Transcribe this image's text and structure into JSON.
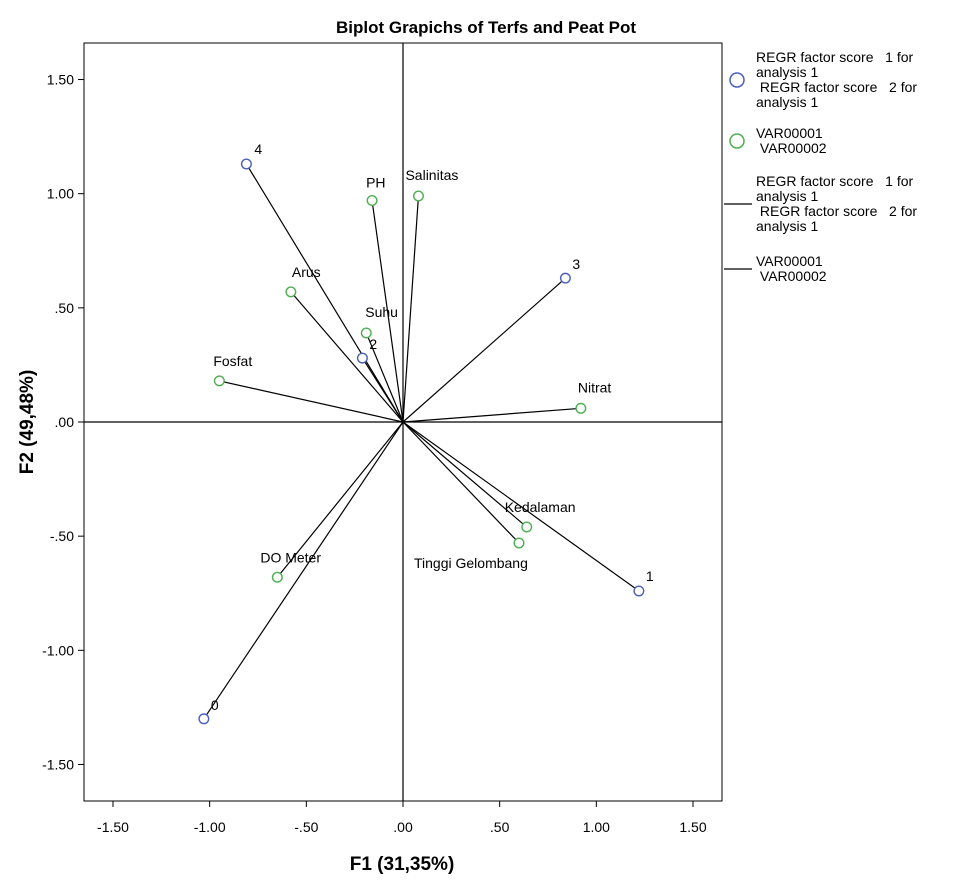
{
  "chart_data": {
    "type": "scatter",
    "title": "Biplot Grapichs of Terfs and Peat Pot",
    "xlabel": "F1 (31,35%)",
    "ylabel": "F2 (49,48%)",
    "xlim": [
      -1.65,
      1.65
    ],
    "ylim": [
      -1.66,
      1.66
    ],
    "x_ticks": [
      {
        "value": -1.5,
        "label": "-1.50"
      },
      {
        "value": -1.0,
        "label": "-1.00"
      },
      {
        "value": -0.5,
        "label": "-.50"
      },
      {
        "value": 0.0,
        "label": ".00"
      },
      {
        "value": 0.5,
        "label": ".50"
      },
      {
        "value": 1.0,
        "label": "1.00"
      },
      {
        "value": 1.5,
        "label": "1.50"
      }
    ],
    "y_ticks": [
      {
        "value": 1.5,
        "label": "1.50"
      },
      {
        "value": 1.0,
        "label": "1.00"
      },
      {
        "value": 0.5,
        "label": ".50"
      },
      {
        "value": 0.0,
        "label": ".00"
      },
      {
        "value": -0.5,
        "label": "-.50"
      },
      {
        "value": -1.0,
        "label": "-1.00"
      },
      {
        "value": -1.5,
        "label": "-1.50"
      }
    ],
    "grid": false,
    "reference_lines": {
      "x": 0,
      "y": 0
    },
    "legend_position": "right",
    "series": [
      {
        "name": "REGR factor score 1 for analysis 1 / REGR factor score 2 for analysis 1",
        "color": "#4a5fbf",
        "marker": "circle",
        "points": [
          {
            "label": "4",
            "x": -0.81,
            "y": 1.13
          },
          {
            "label": "3",
            "x": 0.84,
            "y": 0.63
          },
          {
            "label": "2",
            "x": -0.21,
            "y": 0.28
          },
          {
            "label": "1",
            "x": 1.22,
            "y": -0.74
          },
          {
            "label": "0",
            "x": -1.03,
            "y": -1.3
          }
        ]
      },
      {
        "name": "VAR00001 / VAR00002",
        "color": "#4caf50",
        "marker": "circle",
        "points": [
          {
            "label": "PH",
            "x": -0.16,
            "y": 0.97
          },
          {
            "label": "Salinitas",
            "x": 0.08,
            "y": 0.99
          },
          {
            "label": "Arus",
            "x": -0.58,
            "y": 0.57
          },
          {
            "label": "Suhu",
            "x": -0.19,
            "y": 0.39
          },
          {
            "label": "Fosfat",
            "x": -0.95,
            "y": 0.18
          },
          {
            "label": "Nitrat",
            "x": 0.92,
            "y": 0.06
          },
          {
            "label": "Kedalaman",
            "x": 0.64,
            "y": -0.46
          },
          {
            "label": "Tinggi Gelombang",
            "x": 0.6,
            "y": -0.53
          },
          {
            "label": "DO Meter",
            "x": -0.65,
            "y": -0.68
          }
        ]
      }
    ],
    "legend": [
      {
        "kind": "circle",
        "color": "#4a5fbf",
        "lines": [
          "REGR factor score   1 for",
          "analysis 1",
          " REGR factor score   2 for",
          "analysis 1"
        ]
      },
      {
        "kind": "circle",
        "color": "#4caf50",
        "lines": [
          "VAR00001",
          " VAR00002"
        ]
      },
      {
        "kind": "line",
        "color": "#000000",
        "lines": [
          "REGR factor score   1 for",
          "analysis 1",
          " REGR factor score   2 for",
          "analysis 1"
        ]
      },
      {
        "kind": "line",
        "color": "#000000",
        "lines": [
          "VAR00001",
          " VAR00002"
        ]
      }
    ]
  }
}
